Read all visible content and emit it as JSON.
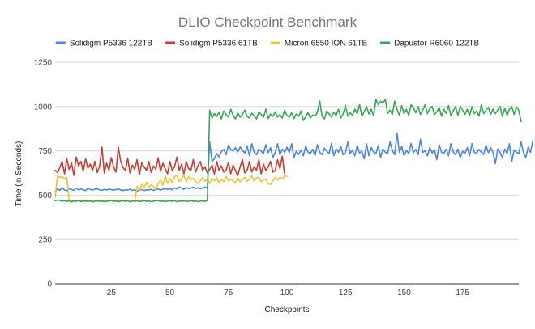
{
  "chart_data": {
    "type": "line",
    "title": "DLIO Checkpoint Benchmark",
    "xlabel": "Checkpoints",
    "ylabel": "Time (in Seconds)",
    "xlim": [
      1,
      199
    ],
    "ylim": [
      0,
      1250
    ],
    "xticks": [
      25,
      50,
      75,
      100,
      125,
      150,
      175
    ],
    "yticks": [
      0,
      250,
      500,
      750,
      1000,
      1250
    ],
    "grid": true,
    "legend_position": "top",
    "series": [
      {
        "name": "Solidigm P5336 122TB",
        "color": "#4a86e8",
        "x_start": 1,
        "values": [
          520,
          535,
          528,
          542,
          530,
          525,
          538,
          532,
          527,
          540,
          529,
          535,
          531,
          526,
          538,
          533,
          529,
          534,
          536,
          530,
          527,
          533,
          529,
          535,
          531,
          528,
          532,
          534,
          530,
          526,
          531,
          529,
          533,
          527,
          530,
          524,
          528,
          532,
          526,
          530,
          529,
          533,
          527,
          531,
          535,
          529,
          534,
          538,
          532,
          536,
          530,
          541,
          535,
          546,
          539,
          533,
          543,
          537,
          541,
          545,
          538,
          542,
          536,
          540,
          546,
          538,
          800,
          690,
          705,
          735,
          715,
          745,
          758,
          728,
          782,
          758,
          748,
          768,
          742,
          772,
          752,
          738,
          778,
          722,
          790,
          742,
          728,
          760,
          748,
          735,
          785,
          740,
          768,
          712,
          742,
          790,
          728,
          760,
          742,
          770,
          740,
          790,
          712,
          748,
          730,
          755,
          722,
          778,
          742,
          735,
          758,
          722,
          785,
          742,
          728,
          765,
          748,
          735,
          792,
          722,
          760,
          742,
          775,
          728,
          742,
          800,
          735,
          755,
          722,
          780,
          738,
          748,
          705,
          790,
          722,
          768,
          742,
          735,
          780,
          712,
          760,
          742,
          735,
          800,
          752,
          728,
          850,
          742,
          775,
          722,
          752,
          735,
          792,
          740,
          758,
          728,
          815,
          742,
          750,
          722,
          768,
          738,
          755,
          700,
          785,
          742,
          735,
          760,
          722,
          790,
          745,
          728,
          760,
          712,
          748,
          735,
          768,
          722,
          790,
          742,
          735,
          758,
          742,
          730,
          782,
          740,
          768,
          742,
          678,
          760,
          742,
          712,
          760,
          735,
          790,
          688,
          755,
          742,
          735,
          800,
          740,
          712,
          770,
          742,
          808
        ]
      },
      {
        "name": "Solidigm P5336 61TB",
        "color": "#cc3b33",
        "x_start": 1,
        "values": [
          640,
          628,
          655,
          690,
          620,
          705,
          645,
          682,
          612,
          715,
          665,
          690,
          635,
          705,
          652,
          675,
          640,
          690,
          628,
          665,
          770,
          625,
          680,
          640,
          712,
          658,
          630,
          770,
          690,
          655,
          640,
          708,
          625,
          670,
          645,
          700,
          615,
          682,
          660,
          640,
          690,
          628,
          665,
          645,
          710,
          635,
          680,
          650,
          620,
          690,
          640,
          660,
          715,
          640,
          675,
          620,
          690,
          650,
          640,
          700,
          630,
          665,
          690,
          640,
          660,
          625,
          645,
          670,
          620,
          690,
          640,
          665,
          630,
          640,
          685,
          620,
          670,
          640,
          610,
          660,
          700,
          625,
          640,
          690,
          630,
          660,
          640,
          700,
          620,
          675,
          640,
          660,
          690,
          630,
          640,
          700,
          650,
          720,
          620
        ]
      },
      {
        "name": "Micron 6550 ION 61TB",
        "color": "#f1c232",
        "x_start": 1,
        "values": [
          488,
          608,
          600,
          605,
          592,
          600,
          470,
          468,
          465,
          468,
          470,
          466,
          468,
          465,
          470,
          468,
          466,
          470,
          465,
          468,
          466,
          470,
          468,
          465,
          470,
          468,
          466,
          470,
          468,
          470,
          468,
          466,
          465,
          468,
          465,
          550,
          525,
          560,
          540,
          572,
          545,
          558,
          548,
          530,
          565,
          585,
          555,
          608,
          565,
          595,
          570,
          602,
          615,
          578,
          590,
          615,
          575,
          605,
          588,
          595,
          575,
          565,
          582,
          600,
          578,
          590,
          565,
          595,
          580,
          600,
          568,
          590,
          575,
          605,
          580,
          590,
          580,
          568,
          598,
          575,
          588,
          600,
          578,
          592,
          608,
          580,
          598,
          600,
          575,
          585,
          590,
          565,
          560,
          582,
          600,
          585,
          600,
          590,
          610,
          605
        ]
      },
      {
        "name": "Dapustor R6060 122TB",
        "color": "#34a853",
        "x_start": 1,
        "values": [
          468,
          472,
          470,
          466,
          469,
          465,
          467,
          462,
          468,
          465,
          470,
          464,
          466,
          468,
          465,
          467,
          462,
          466,
          469,
          465,
          467,
          463,
          466,
          468,
          470,
          465,
          467,
          463,
          466,
          468,
          465,
          469,
          462,
          467,
          465,
          468,
          464,
          466,
          469,
          465,
          467,
          463,
          466,
          468,
          470,
          465,
          467,
          464,
          466,
          468,
          465,
          469,
          463,
          467,
          465,
          468,
          464,
          466,
          470,
          465,
          467,
          463,
          466,
          468,
          465,
          470,
          980,
          935,
          960,
          945,
          968,
          930,
          975,
          955,
          940,
          985,
          950,
          930,
          965,
          940,
          955,
          980,
          945,
          935,
          962,
          948,
          930,
          970,
          955,
          940,
          985,
          932,
          958,
          945,
          970,
          940,
          955,
          935,
          980,
          950,
          940,
          965,
          932,
          958,
          945,
          975,
          922,
          942,
          965,
          935,
          952,
          945,
          968,
          1030,
          945,
          930,
          975,
          958,
          940,
          968,
          950,
          985,
          935,
          960,
          1005,
          945,
          965,
          950,
          985,
          960,
          1010,
          945,
          972,
          1000,
          958,
          985,
          948,
          1040,
          1010,
          1030,
          1020,
          1040,
          960,
          980,
          955,
          1030,
          985,
          950,
          1005,
          960,
          985,
          950,
          1010,
          995,
          965,
          1000,
          955,
          980,
          1010,
          960,
          990,
          1000,
          955,
          970,
          995,
          945,
          985,
          962,
          1005,
          948,
          975,
          1000,
          950,
          1000,
          980,
          955,
          985,
          950,
          1000,
          960,
          975,
          945,
          1010,
          960,
          980,
          995,
          955,
          985,
          960,
          980,
          1000,
          945,
          990,
          950,
          985,
          1000,
          955,
          998,
          978,
          915
        ]
      }
    ]
  }
}
